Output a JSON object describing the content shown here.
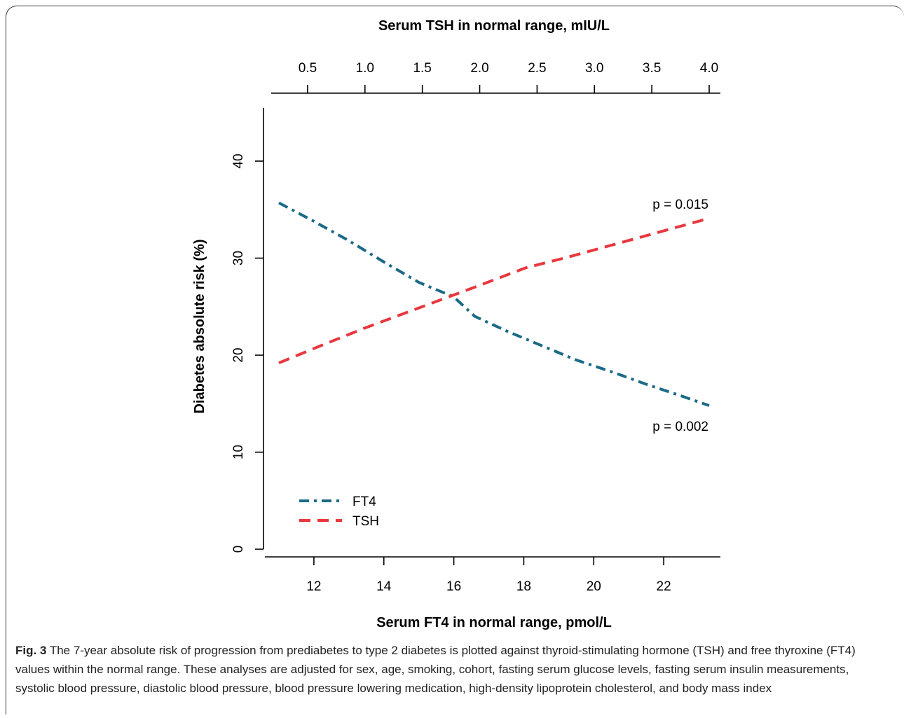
{
  "chart_data": {
    "type": "line",
    "x_primary": {
      "label": "Serum FT4 in normal range, pmol/L",
      "ticks": [
        12,
        14,
        16,
        18,
        20,
        22
      ],
      "range": [
        11,
        23.3
      ]
    },
    "x_secondary": {
      "label": "Serum TSH in normal range, mIU/L",
      "ticks": [
        0.5,
        1.0,
        1.5,
        2.0,
        2.5,
        3.0,
        3.5,
        4.0
      ],
      "tick_labels": [
        "0.5",
        "1.0",
        "1.5",
        "2.0",
        "2.5",
        "3.0",
        "3.5",
        "4.0"
      ],
      "range": [
        0.25,
        4.0
      ]
    },
    "y": {
      "label": "Diabetes absolute risk (%)",
      "ticks": [
        0,
        10,
        20,
        30,
        40
      ],
      "range": [
        0,
        45
      ]
    },
    "series": [
      {
        "name": "FT4",
        "axis": "x_primary",
        "color": "#1b6a86",
        "dash": "dash-dot",
        "points": [
          [
            11,
            35.7
          ],
          [
            12,
            33.8
          ],
          [
            13,
            31.8
          ],
          [
            14,
            29.6
          ],
          [
            15,
            27.5
          ],
          [
            16,
            26.0
          ],
          [
            16.6,
            24.0
          ],
          [
            17.5,
            22.5
          ],
          [
            18.5,
            21.0
          ],
          [
            19.5,
            19.5
          ],
          [
            20.5,
            18.3
          ],
          [
            21.5,
            17.0
          ],
          [
            22.5,
            15.8
          ],
          [
            23.3,
            14.8
          ]
        ],
        "annotation": "p = 0.002"
      },
      {
        "name": "TSH",
        "axis": "x_secondary",
        "color": "#e8383d",
        "dash": "dash",
        "points": [
          [
            0.25,
            19.2
          ],
          [
            0.6,
            20.9
          ],
          [
            1.0,
            22.8
          ],
          [
            1.5,
            25.0
          ],
          [
            2.0,
            27.2
          ],
          [
            2.4,
            29.0
          ],
          [
            2.8,
            30.2
          ],
          [
            3.2,
            31.5
          ],
          [
            3.6,
            32.8
          ],
          [
            4.0,
            34.1
          ]
        ],
        "annotation": "p = 0.015"
      }
    ],
    "legend": "bottom-left",
    "grid": false
  },
  "caption": {
    "label": "Fig. 3",
    "text": " The 7-year absolute risk of progression from prediabetes to type 2 diabetes is plotted against thyroid-stimulating hormone (TSH) and free thyroxine (FT4) values within the normal range. These analyses are adjusted for sex, age, smoking, cohort, fasting serum glucose levels, fasting serum insulin measurements, systolic blood pressure, diastolic blood pressure, blood pressure lowering medication, high-density lipoprotein cholesterol, and body mass index"
  }
}
